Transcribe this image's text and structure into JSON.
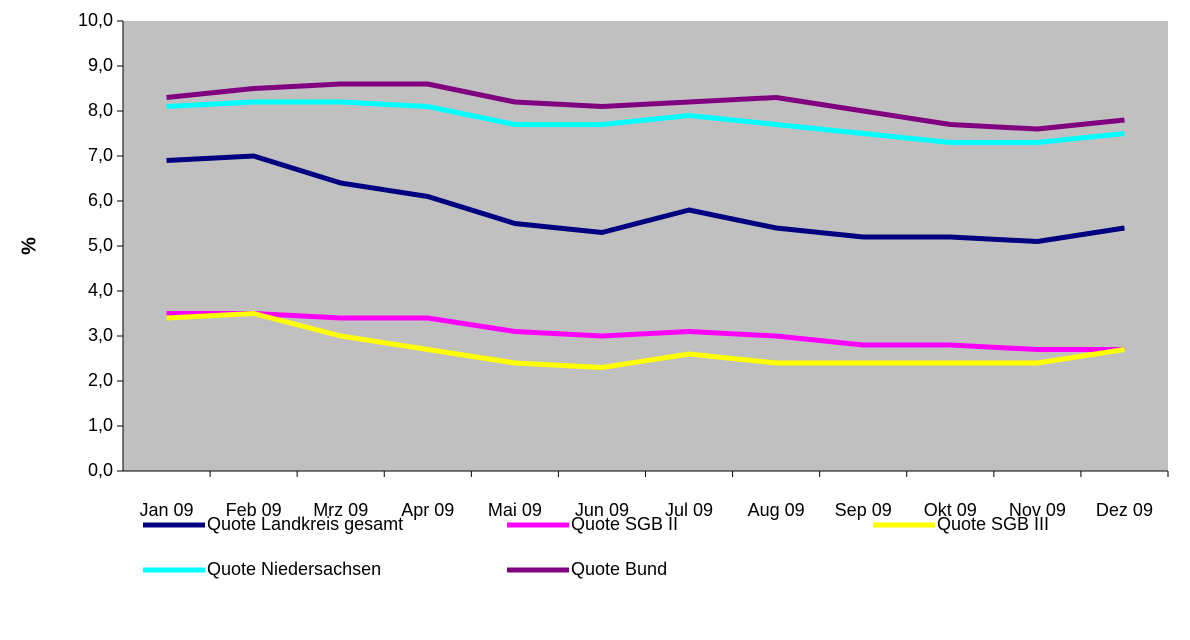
{
  "chart_data": {
    "type": "line",
    "ylabel": "%",
    "categories": [
      "Jan 09",
      "Feb 09",
      "Mrz 09",
      "Apr 09",
      "Mai 09",
      "Jun 09",
      "Jul 09",
      "Aug 09",
      "Sep 09",
      "Okt 09",
      "Nov 09",
      "Dez 09"
    ],
    "series": [
      {
        "name": "Quote Landkreis gesamt",
        "color": "#000080",
        "values": [
          6.9,
          7.0,
          6.4,
          6.1,
          5.5,
          5.3,
          5.8,
          5.4,
          5.2,
          5.2,
          5.1,
          5.4
        ]
      },
      {
        "name": "Quote SGB II",
        "color": "#ff00ff",
        "values": [
          3.5,
          3.5,
          3.4,
          3.4,
          3.1,
          3.0,
          3.1,
          3.0,
          2.8,
          2.8,
          2.7,
          2.7
        ]
      },
      {
        "name": "Quote SGB III",
        "color": "#ffff00",
        "values": [
          3.4,
          3.5,
          3.0,
          2.7,
          2.4,
          2.3,
          2.6,
          2.4,
          2.4,
          2.4,
          2.4,
          2.7
        ]
      },
      {
        "name": "Quote Niedersachsen",
        "color": "#00ffff",
        "values": [
          8.1,
          8.2,
          8.2,
          8.1,
          7.7,
          7.7,
          7.9,
          7.7,
          7.5,
          7.3,
          7.3,
          7.5
        ]
      },
      {
        "name": "Quote Bund",
        "color": "#800080",
        "values": [
          8.3,
          8.5,
          8.6,
          8.6,
          8.2,
          8.1,
          8.2,
          8.3,
          8.0,
          7.7,
          7.6,
          7.8
        ]
      }
    ],
    "ylim": [
      0,
      10
    ],
    "yticks": [
      {
        "value": 0,
        "label": "0,0"
      },
      {
        "value": 1,
        "label": "1,0"
      },
      {
        "value": 2,
        "label": "2,0"
      },
      {
        "value": 3,
        "label": "3,0"
      },
      {
        "value": 4,
        "label": "4,0"
      },
      {
        "value": 5,
        "label": "5,0"
      },
      {
        "value": 6,
        "label": "6,0"
      },
      {
        "value": 7,
        "label": "7,0"
      },
      {
        "value": 8,
        "label": "8,0"
      },
      {
        "value": 9,
        "label": "9,0"
      },
      {
        "value": 10,
        "label": "10,0"
      }
    ],
    "plot_background": "#c0c0c0",
    "legend": "bottom"
  }
}
